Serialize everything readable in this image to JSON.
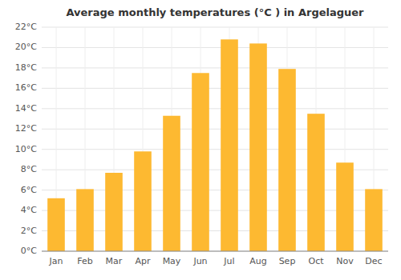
{
  "chart_data": {
    "type": "bar",
    "title": "Average monthly temperatures (°C ) in Argelaguer",
    "categories": [
      "Jan",
      "Feb",
      "Mar",
      "Apr",
      "May",
      "Jun",
      "Jul",
      "Aug",
      "Sep",
      "Oct",
      "Nov",
      "Dec"
    ],
    "values": [
      5.2,
      6.1,
      7.7,
      9.8,
      13.3,
      17.5,
      20.8,
      20.4,
      17.9,
      13.5,
      8.7,
      6.1
    ],
    "color": "#FDB931",
    "ylim": [
      0,
      22
    ],
    "yticks": [
      {
        "value": 0,
        "label": "0°C"
      },
      {
        "value": 2,
        "label": "2°C"
      },
      {
        "value": 4,
        "label": "4°C"
      },
      {
        "value": 6,
        "label": "6°C"
      },
      {
        "value": 8,
        "label": "8°C"
      },
      {
        "value": 10,
        "label": "10°C"
      },
      {
        "value": 12,
        "label": "12°C"
      },
      {
        "value": 14,
        "label": "14°C"
      },
      {
        "value": 16,
        "label": "16°C"
      },
      {
        "value": 18,
        "label": "18°C"
      },
      {
        "value": 20,
        "label": "20°C"
      },
      {
        "value": 22,
        "label": "22°C"
      }
    ],
    "grid": true
  }
}
